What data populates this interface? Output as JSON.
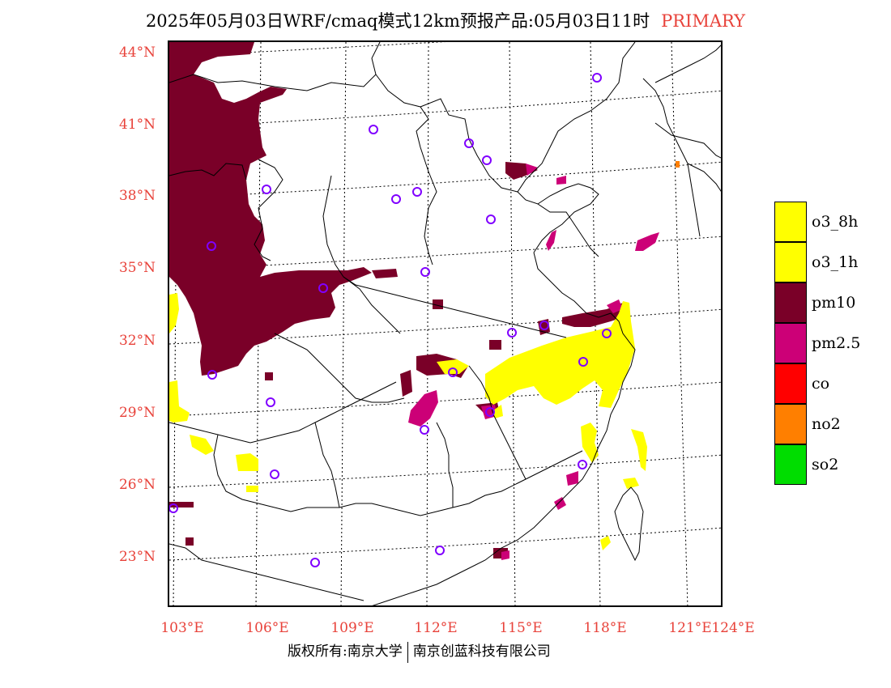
{
  "header": {
    "title": "2025年05月03日WRF/cmaq模式12km预报产品:05月03日11时",
    "primary_label": "PRIMARY"
  },
  "axes": {
    "lat_labels": [
      "44°N",
      "41°N",
      "38°N",
      "35°N",
      "32°N",
      "29°N",
      "26°N",
      "23°N"
    ],
    "lon_labels": [
      "103°E",
      "106°E",
      "109°E",
      "112°E",
      "115°E",
      "118°E",
      "121°E",
      "124°E"
    ]
  },
  "legend": {
    "items": [
      {
        "label": "o3_8h",
        "color": "#ffff00"
      },
      {
        "label": "o3_1h",
        "color": "#ffff00"
      },
      {
        "label": "pm10",
        "color": "#7a0028"
      },
      {
        "label": "pm2.5",
        "color": "#cc0077"
      },
      {
        "label": "co",
        "color": "#ff0000"
      },
      {
        "label": "no2",
        "color": "#ff7f00"
      },
      {
        "label": "so2",
        "color": "#00dd00"
      }
    ]
  },
  "footer": {
    "left": "版权所有:南京大学",
    "right": "南京创蓝科技有限公司"
  },
  "colors": {
    "pm10": "#7a0028",
    "pm25": "#cc0077",
    "o3": "#ffff00",
    "station": "#8000ff",
    "label": "#e8423a"
  }
}
